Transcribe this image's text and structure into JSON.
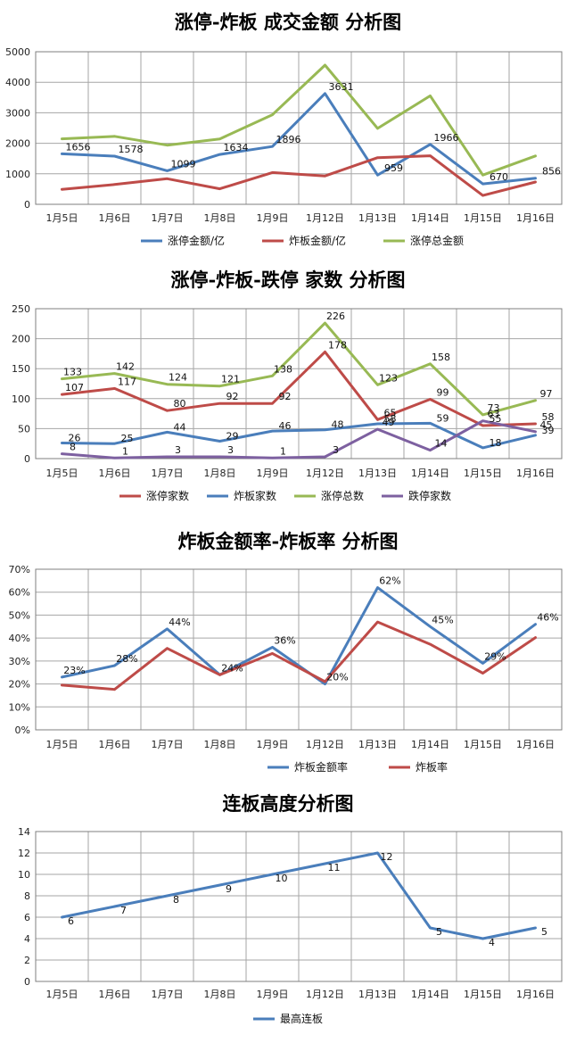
{
  "colors": {
    "blue": "#4a7ebb",
    "red": "#be4b48",
    "green": "#98b954",
    "purple": "#7d60a0",
    "grid": "#a6a6a6",
    "border": "#7f7f7f"
  },
  "chart_data": [
    {
      "type": "line",
      "title": "涨停-炸板 成交金额 分析图",
      "categories": [
        "1月5日",
        "1月6日",
        "1月7日",
        "1月8日",
        "1月9日",
        "1月12日",
        "1月13日",
        "1月14日",
        "1月15日",
        "1月16日"
      ],
      "ylim": [
        0,
        5000
      ],
      "yticks": [
        "0",
        "1000",
        "2000",
        "3000",
        "4000",
        "5000"
      ],
      "grid": true,
      "legend": "bottom",
      "series": [
        {
          "name": "涨停金额/亿",
          "color": "#4a7ebb",
          "values": [
            1656,
            1578,
            1099,
            1634,
            1896,
            3631,
            959,
            1966,
            670,
            856
          ],
          "labels": [
            "1656",
            "1578",
            "1099",
            "1634",
            "1896",
            "3631",
            "959",
            "1966",
            "670",
            "856"
          ]
        },
        {
          "name": "炸板金额/亿",
          "color": "#be4b48",
          "values": [
            490,
            650,
            840,
            510,
            1040,
            930,
            1530,
            1590,
            290,
            730
          ],
          "labels": []
        },
        {
          "name": "涨停总金额",
          "color": "#98b954",
          "values": [
            2146,
            2228,
            1939,
            2144,
            2936,
            4561,
            2489,
            3556,
            960,
            1586
          ],
          "labels": []
        }
      ]
    },
    {
      "type": "line",
      "title": "涨停-炸板-跌停 家数 分析图",
      "categories": [
        "1月5日",
        "1月6日",
        "1月7日",
        "1月8日",
        "1月9日",
        "1月12日",
        "1月13日",
        "1月14日",
        "1月15日",
        "1月16日"
      ],
      "ylim": [
        0,
        250
      ],
      "yticks": [
        "0",
        "50",
        "100",
        "150",
        "200",
        "250"
      ],
      "grid": true,
      "legend": "bottom",
      "series": [
        {
          "name": "涨停家数",
          "color": "#be4b48",
          "values": [
            107,
            117,
            80,
            92,
            92,
            178,
            65,
            99,
            55,
            58
          ],
          "labels": [
            "107",
            "117",
            "80",
            "92",
            "92",
            "178",
            "65",
            "99",
            "55",
            "58"
          ]
        },
        {
          "name": "炸板家数",
          "color": "#4a7ebb",
          "values": [
            26,
            25,
            44,
            29,
            46,
            48,
            58,
            59,
            18,
            39
          ],
          "labels": [
            "26",
            "25",
            "44",
            "29",
            "46",
            "48",
            "58",
            "59",
            "18",
            "39"
          ]
        },
        {
          "name": "涨停总数",
          "color": "#98b954",
          "values": [
            133,
            142,
            124,
            121,
            138,
            226,
            123,
            158,
            73,
            97
          ],
          "labels": [
            "133",
            "142",
            "124",
            "121",
            "138",
            "226",
            "123",
            "158",
            "73",
            "97"
          ]
        },
        {
          "name": "跌停家数",
          "color": "#7d60a0",
          "values": [
            8,
            1,
            3,
            3,
            1,
            3,
            49,
            14,
            63,
            45
          ],
          "labels": [
            "8",
            "1",
            "3",
            "3",
            "1",
            "3",
            "49",
            "14",
            "63",
            "45"
          ]
        }
      ]
    },
    {
      "type": "line",
      "title": "炸板金额率-炸板率 分析图",
      "categories": [
        "1月5日",
        "1月6日",
        "1月7日",
        "1月8日",
        "1月9日",
        "1月12日",
        "1月13日",
        "1月14日",
        "1月15日",
        "1月16日"
      ],
      "ylim": [
        0,
        70
      ],
      "yticks": [
        "0%",
        "10%",
        "20%",
        "30%",
        "40%",
        "50%",
        "60%",
        "70%"
      ],
      "grid": true,
      "legend": "bottom",
      "series": [
        {
          "name": "炸板金额率",
          "color": "#4a7ebb",
          "values": [
            23,
            28,
            44,
            24,
            36,
            20,
            62,
            45,
            29,
            46
          ],
          "labels": [
            "23%",
            "28%",
            "44%",
            "24%",
            "36%",
            "20%",
            "62%",
            "45%",
            "29%",
            "46%"
          ]
        },
        {
          "name": "炸板率",
          "color": "#be4b48",
          "values": [
            19.5,
            17.6,
            35.5,
            24,
            33.3,
            21,
            47,
            37.3,
            24.7,
            40.2
          ],
          "labels": []
        }
      ]
    },
    {
      "type": "line",
      "title": "连板高度分析图",
      "categories": [
        "1月5日",
        "1月6日",
        "1月7日",
        "1月8日",
        "1月9日",
        "1月12日",
        "1月13日",
        "1月14日",
        "1月15日",
        "1月16日"
      ],
      "ylim": [
        0,
        14
      ],
      "yticks": [
        "0",
        "2",
        "4",
        "6",
        "8",
        "10",
        "12",
        "14"
      ],
      "grid": true,
      "legend": "bottom",
      "series": [
        {
          "name": "最高连板",
          "color": "#4a7ebb",
          "values": [
            6,
            7,
            8,
            9,
            10,
            11,
            12,
            5,
            4,
            5
          ],
          "labels": [
            "6",
            "7",
            "8",
            "9",
            "10",
            "11",
            "12",
            "5",
            "4",
            "5"
          ]
        }
      ]
    }
  ]
}
